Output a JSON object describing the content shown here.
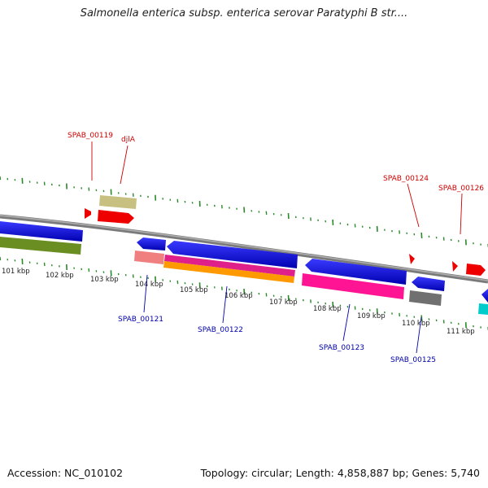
{
  "title": "Salmonella enterica subsp. enterica serovar Paratyphi B str....",
  "footer": {
    "accession": "Accession: NC_010102",
    "summary": "Topology: circular; Length: 4,858,887 bp; Genes: 5,740"
  },
  "colors": {
    "backbone": "#808080",
    "tick": "#2a8a2a",
    "forward_label": "#cc0000",
    "reverse_label": "#0000aa"
  },
  "scale": {
    "unit": "kbp",
    "labels": [
      "101 kbp",
      "102 kbp",
      "103 kbp",
      "104 kbp",
      "105 kbp",
      "106 kbp",
      "107 kbp",
      "108 kbp",
      "109 kbp",
      "110 kbp",
      "111 kbp"
    ],
    "start_kbp": 101,
    "end_kbp": 111
  },
  "forward_labels": [
    "SPAB_00119",
    "djlA",
    "SPAB_00124",
    "SPAB_00126"
  ],
  "reverse_labels": [
    "SPAB_00121",
    "SPAB_00122",
    "SPAB_00123",
    "SPAB_00125"
  ]
}
